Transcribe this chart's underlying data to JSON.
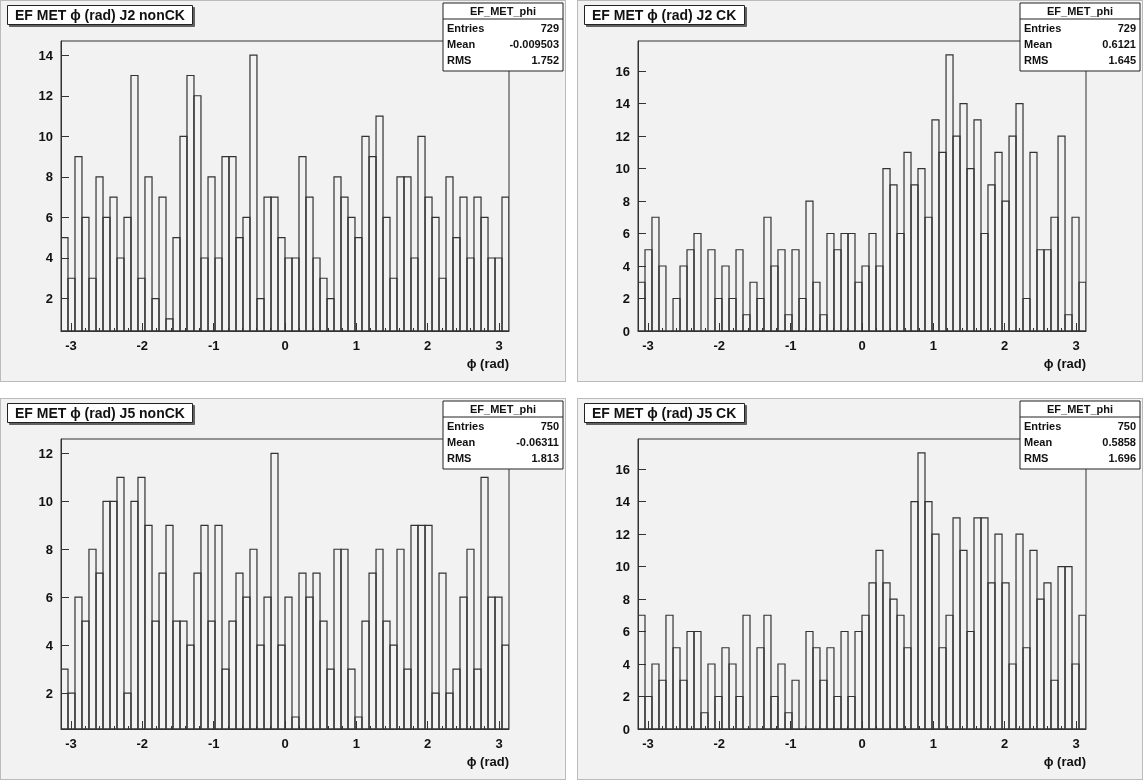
{
  "chart_data": [
    {
      "type": "histogram",
      "title": "EF MET ϕ (rad) J2 nonCK",
      "xlabel": "ϕ (rad)",
      "color": "#333333",
      "grid": false,
      "annotations": [
        "EF_MET_phi",
        "Entries",
        "729",
        "Mean",
        "-0.009503",
        "RMS",
        "1.752"
      ],
      "xlim": [
        -3.14,
        3.14
      ],
      "xticks": [
        -3,
        -2,
        -1,
        0,
        1,
        2,
        3
      ],
      "ylim": [
        0.4,
        14.7
      ],
      "yticks": [
        2,
        4,
        6,
        8,
        10,
        12,
        14
      ],
      "bins": [
        -3.14,
        -3.042,
        -2.944,
        -2.846,
        -2.748,
        -2.649,
        -2.551,
        -2.453,
        -2.355,
        -2.257,
        -2.159,
        -2.061,
        -1.963,
        -1.864,
        -1.766,
        -1.668,
        -1.57,
        -1.472,
        -1.374,
        -1.276,
        -1.178,
        -1.079,
        -0.981,
        -0.883,
        -0.785,
        -0.687,
        -0.589,
        -0.491,
        -0.393,
        -0.294,
        -0.196,
        -0.098,
        0,
        0.098,
        0.196,
        0.294,
        0.393,
        0.491,
        0.589,
        0.687,
        0.785,
        0.883,
        0.981,
        1.079,
        1.178,
        1.276,
        1.374,
        1.472,
        1.57,
        1.668,
        1.766,
        1.864,
        1.963,
        2.061,
        2.159,
        2.257,
        2.355,
        2.453,
        2.551,
        2.649,
        2.748,
        2.846,
        2.944,
        3.042,
        3.14
      ],
      "values": [
        5,
        3,
        9,
        6,
        3,
        8,
        6,
        7,
        4,
        6,
        13,
        3,
        8,
        2,
        7,
        1,
        5,
        10,
        13,
        12,
        4,
        8,
        4,
        9,
        9,
        5,
        6,
        14,
        2,
        7,
        7,
        5,
        4,
        4,
        9,
        7,
        4,
        3,
        2,
        8,
        7,
        6,
        5,
        10,
        9,
        11,
        6,
        3,
        8,
        8,
        4,
        10,
        7,
        6,
        3,
        8,
        5,
        7,
        4,
        7,
        6,
        4,
        4,
        7
      ]
    },
    {
      "type": "histogram",
      "title": "EF MET ϕ (rad) J2 CK",
      "xlabel": "ϕ (rad)",
      "color": "#333333",
      "grid": false,
      "annotations": [
        "EF_MET_phi",
        "Entries",
        "729",
        "Mean",
        "0.6121",
        "RMS",
        "1.645"
      ],
      "xlim": [
        -3.14,
        3.14
      ],
      "xticks": [
        -3,
        -2,
        -1,
        0,
        1,
        2,
        3
      ],
      "ylim": [
        0,
        17.85
      ],
      "yticks": [
        0,
        2,
        4,
        6,
        8,
        10,
        12,
        14,
        16
      ],
      "bins": [
        -3.14,
        -3.042,
        -2.944,
        -2.846,
        -2.748,
        -2.649,
        -2.551,
        -2.453,
        -2.355,
        -2.257,
        -2.159,
        -2.061,
        -1.963,
        -1.864,
        -1.766,
        -1.668,
        -1.57,
        -1.472,
        -1.374,
        -1.276,
        -1.178,
        -1.079,
        -0.981,
        -0.883,
        -0.785,
        -0.687,
        -0.589,
        -0.491,
        -0.393,
        -0.294,
        -0.196,
        -0.098,
        0,
        0.098,
        0.196,
        0.294,
        0.393,
        0.491,
        0.589,
        0.687,
        0.785,
        0.883,
        0.981,
        1.079,
        1.178,
        1.276,
        1.374,
        1.472,
        1.57,
        1.668,
        1.766,
        1.864,
        1.963,
        2.061,
        2.159,
        2.257,
        2.355,
        2.453,
        2.551,
        2.649,
        2.748,
        2.846,
        2.944,
        3.042,
        3.14
      ],
      "values": [
        3,
        5,
        7,
        4,
        0,
        2,
        4,
        5,
        6,
        0,
        5,
        2,
        4,
        2,
        5,
        1,
        3,
        2,
        7,
        4,
        5,
        1,
        5,
        2,
        8,
        3,
        1,
        6,
        5,
        6,
        6,
        3,
        4,
        6,
        4,
        10,
        9,
        6,
        11,
        9,
        10,
        7,
        13,
        11,
        17,
        12,
        14,
        10,
        13,
        6,
        9,
        11,
        8,
        12,
        14,
        2,
        11,
        5,
        5,
        7,
        12,
        1,
        7,
        3
      ]
    },
    {
      "type": "histogram",
      "title": "EF MET ϕ (rad) J5 nonCK",
      "xlabel": "ϕ (rad)",
      "color": "#333333",
      "grid": false,
      "annotations": [
        "EF_MET_phi",
        "Entries",
        "750",
        "Mean",
        "-0.06311",
        "RMS",
        "1.813"
      ],
      "xlim": [
        -3.14,
        3.14
      ],
      "xticks": [
        -3,
        -2,
        -1,
        0,
        1,
        2,
        3
      ],
      "ylim": [
        0.5,
        12.6
      ],
      "yticks": [
        2,
        4,
        6,
        8,
        10,
        12
      ],
      "bins": [
        -3.14,
        -3.042,
        -2.944,
        -2.846,
        -2.748,
        -2.649,
        -2.551,
        -2.453,
        -2.355,
        -2.257,
        -2.159,
        -2.061,
        -1.963,
        -1.864,
        -1.766,
        -1.668,
        -1.57,
        -1.472,
        -1.374,
        -1.276,
        -1.178,
        -1.079,
        -0.981,
        -0.883,
        -0.785,
        -0.687,
        -0.589,
        -0.491,
        -0.393,
        -0.294,
        -0.196,
        -0.098,
        0,
        0.098,
        0.196,
        0.294,
        0.393,
        0.491,
        0.589,
        0.687,
        0.785,
        0.883,
        0.981,
        1.079,
        1.178,
        1.276,
        1.374,
        1.472,
        1.57,
        1.668,
        1.766,
        1.864,
        1.963,
        2.061,
        2.159,
        2.257,
        2.355,
        2.453,
        2.551,
        2.649,
        2.748,
        2.846,
        2.944,
        3.042,
        3.14
      ],
      "values": [
        3,
        2,
        6,
        5,
        8,
        7,
        10,
        10,
        11,
        2,
        10,
        11,
        9,
        5,
        7,
        9,
        5,
        5,
        4,
        7,
        9,
        5,
        9,
        3,
        5,
        7,
        6,
        8,
        4,
        6,
        12,
        4,
        6,
        1,
        7,
        6,
        7,
        5,
        3,
        8,
        8,
        3,
        1,
        5,
        7,
        8,
        5,
        4,
        8,
        3,
        9,
        9,
        9,
        2,
        7,
        2,
        3,
        6,
        8,
        3,
        11,
        6,
        6,
        4
      ]
    },
    {
      "type": "histogram",
      "title": "EF MET ϕ (rad) J5 CK",
      "xlabel": "ϕ (rad)",
      "color": "#333333",
      "grid": false,
      "annotations": [
        "EF_MET_phi",
        "Entries",
        "750",
        "Mean",
        "0.5858",
        "RMS",
        "1.696"
      ],
      "xlim": [
        -3.14,
        3.14
      ],
      "xticks": [
        -3,
        -2,
        -1,
        0,
        1,
        2,
        3
      ],
      "ylim": [
        0,
        17.85
      ],
      "yticks": [
        0,
        2,
        4,
        6,
        8,
        10,
        12,
        14,
        16
      ],
      "bins": [
        -3.14,
        -3.042,
        -2.944,
        -2.846,
        -2.748,
        -2.649,
        -2.551,
        -2.453,
        -2.355,
        -2.257,
        -2.159,
        -2.061,
        -1.963,
        -1.864,
        -1.766,
        -1.668,
        -1.57,
        -1.472,
        -1.374,
        -1.276,
        -1.178,
        -1.079,
        -0.981,
        -0.883,
        -0.785,
        -0.687,
        -0.589,
        -0.491,
        -0.393,
        -0.294,
        -0.196,
        -0.098,
        0,
        0.098,
        0.196,
        0.294,
        0.393,
        0.491,
        0.589,
        0.687,
        0.785,
        0.883,
        0.981,
        1.079,
        1.178,
        1.276,
        1.374,
        1.472,
        1.57,
        1.668,
        1.766,
        1.864,
        1.963,
        2.061,
        2.159,
        2.257,
        2.355,
        2.453,
        2.551,
        2.649,
        2.748,
        2.846,
        2.944,
        3.042,
        3.14
      ],
      "values": [
        7,
        2,
        4,
        3,
        7,
        5,
        3,
        6,
        6,
        1,
        4,
        2,
        5,
        4,
        2,
        7,
        0,
        5,
        7,
        2,
        4,
        1,
        3,
        0,
        6,
        5,
        3,
        5,
        2,
        6,
        2,
        6,
        7,
        9,
        11,
        9,
        8,
        7,
        5,
        14,
        17,
        14,
        12,
        5,
        7,
        13,
        11,
        6,
        13,
        13,
        9,
        12,
        9,
        4,
        12,
        5,
        11,
        8,
        9,
        3,
        10,
        10,
        4,
        7
      ]
    }
  ]
}
